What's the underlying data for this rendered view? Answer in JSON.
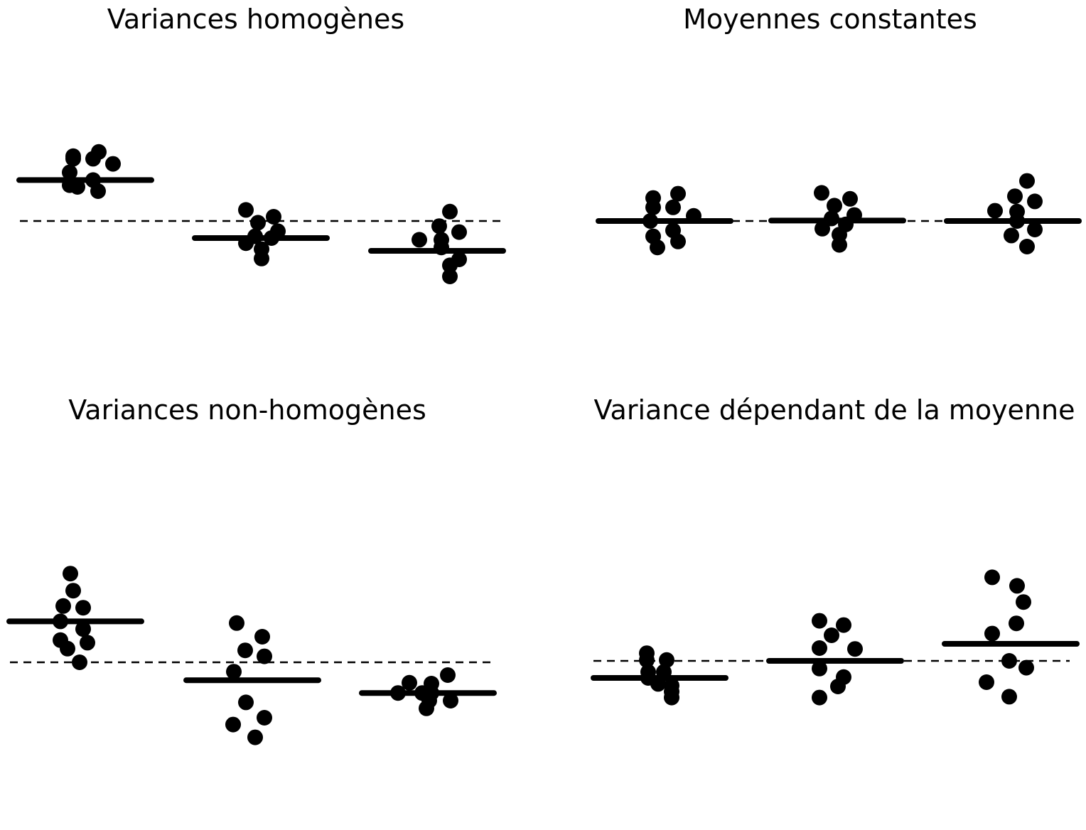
{
  "chart_data": [
    {
      "type": "scatter",
      "title": "Variances homogènes",
      "groups": [
        {
          "values": [
            8.1,
            7.6,
            7.3,
            7.3,
            6.7,
            5.7,
            4.8,
            4.2,
            4.0,
            3.5
          ]
        },
        {
          "values": [
            1.3,
            0.5,
            -0.2,
            -1.2,
            -1.8,
            -2.0,
            -2.6,
            -3.3,
            -4.4
          ]
        },
        {
          "values": [
            1.1,
            -0.6,
            -1.3,
            -2.2,
            -2.2,
            -3.1,
            -4.5,
            -5.2,
            -6.5
          ]
        }
      ],
      "means": [
        4.8,
        -2.0,
        -3.5
      ],
      "reference_line": 0,
      "ylim": [
        -8.5,
        10.5
      ]
    },
    {
      "type": "scatter",
      "title": "Moyennes constantes",
      "groups": [
        {
          "values": [
            3.2,
            2.7,
            1.6,
            1.6,
            0.6,
            0.0,
            -1.1,
            -1.8,
            -2.4,
            -3.1
          ]
        },
        {
          "values": [
            3.3,
            2.6,
            1.8,
            0.7,
            0.3,
            -0.4,
            -0.9,
            -1.6,
            -2.8
          ]
        },
        {
          "values": [
            4.7,
            2.9,
            2.3,
            1.2,
            1.1,
            0.0,
            -1.0,
            -1.7,
            -3.0
          ]
        }
      ],
      "means": [
        0.0,
        0.05,
        0.0
      ],
      "reference_line": 0,
      "ylim": [
        -8.5,
        10.5
      ]
    },
    {
      "type": "scatter",
      "title": "Variances non-homogènes",
      "groups": [
        {
          "values": [
            10.4,
            8.4,
            6.6,
            6.4,
            4.8,
            3.9,
            2.6,
            2.3,
            1.6,
            0.0
          ]
        },
        {
          "values": [
            4.6,
            3.0,
            1.4,
            0.7,
            -1.1,
            -4.7,
            -6.5,
            -7.3,
            -8.8
          ]
        },
        {
          "values": [
            -1.5,
            -2.4,
            -2.5,
            -3.6,
            -3.6,
            -3.6,
            -4.5,
            -4.5,
            -5.4
          ]
        }
      ],
      "means": [
        4.8,
        -2.1,
        -3.6
      ],
      "reference_line": 0,
      "ylim": [
        -8.5,
        10.5
      ]
    },
    {
      "type": "scatter",
      "title": "Variance dépendant de la moyenne",
      "groups": [
        {
          "values": [
            0.9,
            0.1,
            0.1,
            -1.3,
            -1.3,
            -2.0,
            -2.7,
            -2.9,
            -3.6,
            -4.3
          ]
        },
        {
          "values": [
            4.7,
            4.2,
            3.0,
            1.5,
            1.4,
            -0.9,
            -1.9,
            -3.0,
            -4.3
          ]
        },
        {
          "values": [
            9.8,
            8.8,
            6.9,
            4.4,
            3.2,
            0.0,
            -0.8,
            -2.5,
            -4.2
          ]
        }
      ],
      "means": [
        -2.0,
        0.0,
        2.0
      ],
      "reference_line": 0,
      "ylim": [
        -8.5,
        10.5
      ]
    }
  ]
}
